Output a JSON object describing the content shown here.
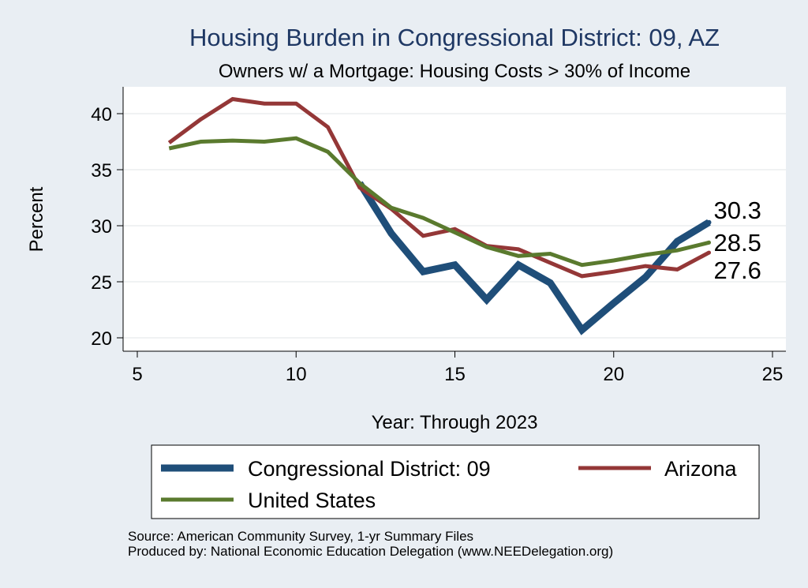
{
  "chart_data": {
    "type": "line",
    "title": "Housing Burden in Congressional District:  09, AZ",
    "subtitle": "Owners w/ a Mortgage: Housing Costs > 30% of Income",
    "xlabel": "Year: Through 2023",
    "ylabel": "Percent",
    "xlim": [
      5,
      25
    ],
    "ylim": [
      20,
      42
    ],
    "xticks": [
      5,
      10,
      15,
      20,
      25
    ],
    "yticks": [
      20,
      25,
      30,
      35,
      40
    ],
    "grid": true,
    "legend_position": "bottom",
    "series": [
      {
        "name": "Congressional District:  09",
        "color": "#1f4e79",
        "x": [
          12,
          13,
          14,
          15,
          16,
          17,
          18,
          19,
          20,
          21,
          22,
          23
        ],
        "values": [
          33.8,
          29.3,
          25.9,
          26.5,
          23.4,
          26.5,
          24.9,
          20.7,
          23.1,
          25.4,
          28.6,
          30.3
        ],
        "end_label": "30.3"
      },
      {
        "name": "Arizona",
        "color": "#943737",
        "x": [
          6,
          7,
          8,
          9,
          10,
          11,
          12,
          13,
          14,
          15,
          16,
          17,
          18,
          19,
          20,
          21,
          22,
          23
        ],
        "values": [
          37.4,
          39.5,
          41.3,
          40.9,
          40.9,
          38.8,
          33.4,
          31.5,
          29.1,
          29.7,
          28.2,
          27.9,
          26.7,
          25.5,
          25.9,
          26.4,
          26.1,
          27.6
        ],
        "end_label": "27.6"
      },
      {
        "name": "United States",
        "color": "#5a7a2e",
        "x": [
          6,
          7,
          8,
          9,
          10,
          11,
          12,
          13,
          14,
          15,
          16,
          17,
          18,
          19,
          20,
          21,
          22,
          23
        ],
        "values": [
          36.9,
          37.5,
          37.6,
          37.5,
          37.8,
          36.6,
          33.8,
          31.6,
          30.7,
          29.4,
          28.1,
          27.3,
          27.5,
          26.5,
          26.9,
          27.4,
          27.8,
          28.5
        ],
        "end_label": "28.5"
      }
    ],
    "notes": [
      "Source: American Community Survey, 1-yr Summary Files",
      "Produced by: National Economic Education Delegation (www.NEEDelegation.org)"
    ]
  }
}
